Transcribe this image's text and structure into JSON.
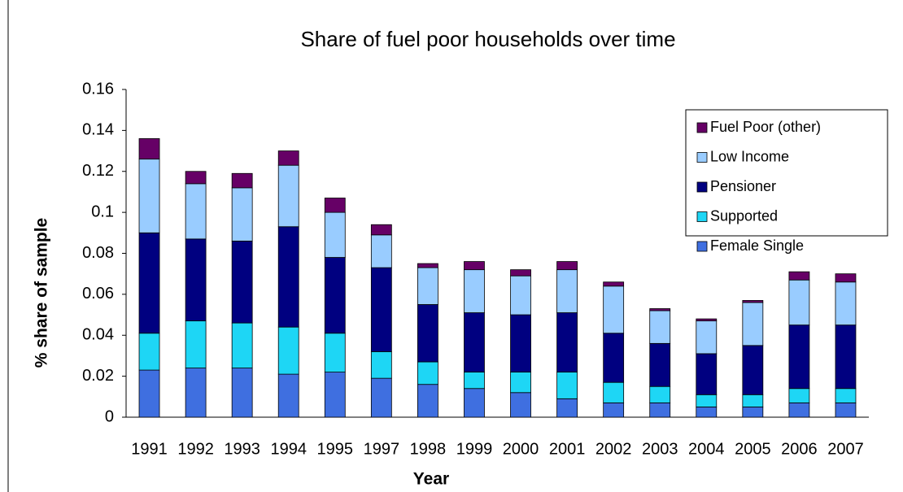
{
  "chart_data": {
    "type": "stacked_bar",
    "title": "Share of fuel poor households over time",
    "x_label": "Year",
    "y_label": "% share of sample",
    "categories": [
      "1991",
      "1992",
      "1993",
      "1994",
      "1995",
      "1997",
      "1998",
      "1999",
      "2000",
      "2001",
      "2002",
      "2003",
      "2004",
      "2005",
      "2006",
      "2007"
    ],
    "series": [
      {
        "name": "Female Single",
        "color": "#3f6fe0",
        "values": [
          0.023,
          0.024,
          0.024,
          0.021,
          0.022,
          0.019,
          0.016,
          0.014,
          0.012,
          0.009,
          0.007,
          0.007,
          0.005,
          0.005,
          0.007,
          0.007
        ]
      },
      {
        "name": "Supported",
        "color": "#1ed6f5",
        "values": [
          0.018,
          0.023,
          0.022,
          0.023,
          0.019,
          0.013,
          0.011,
          0.008,
          0.01,
          0.013,
          0.01,
          0.008,
          0.006,
          0.006,
          0.007,
          0.007
        ]
      },
      {
        "name": "Pensioner",
        "color": "#000080",
        "values": [
          0.049,
          0.04,
          0.04,
          0.049,
          0.037,
          0.041,
          0.028,
          0.029,
          0.028,
          0.029,
          0.024,
          0.021,
          0.02,
          0.024,
          0.031,
          0.031
        ]
      },
      {
        "name": "Low Income",
        "color": "#99ccff",
        "values": [
          0.036,
          0.027,
          0.026,
          0.03,
          0.022,
          0.016,
          0.018,
          0.021,
          0.019,
          0.021,
          0.023,
          0.016,
          0.016,
          0.021,
          0.022,
          0.021
        ]
      },
      {
        "name": "Fuel Poor (other)",
        "color": "#660066",
        "values": [
          0.01,
          0.006,
          0.007,
          0.007,
          0.007,
          0.005,
          0.002,
          0.004,
          0.003,
          0.004,
          0.002,
          0.001,
          0.001,
          0.001,
          0.004,
          0.004
        ]
      }
    ],
    "ylim": [
      0,
      0.16
    ],
    "yticks": [
      0,
      0.02,
      0.04,
      0.06,
      0.08,
      0.1,
      0.12,
      0.14,
      0.16
    ],
    "grid": false,
    "legend": "top-right"
  }
}
